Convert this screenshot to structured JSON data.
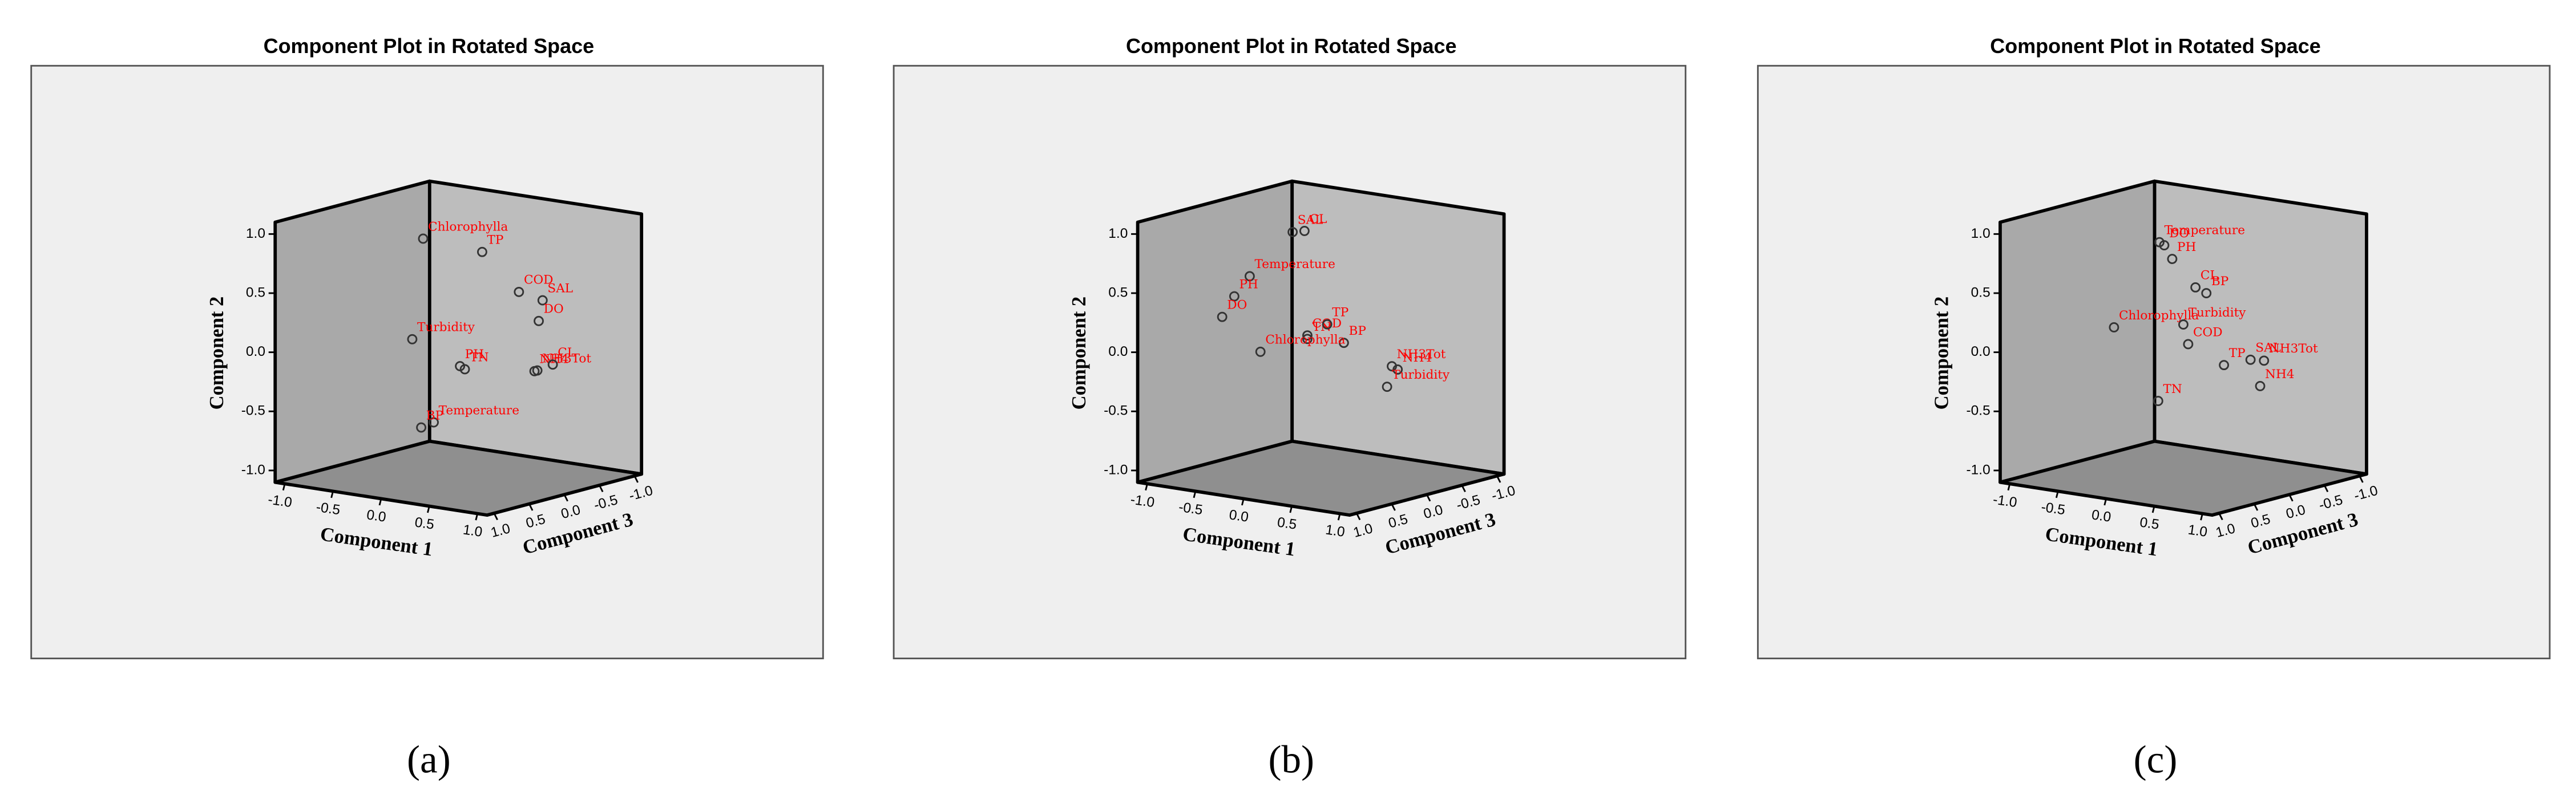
{
  "chart_data": [
    {
      "type": "scatter3d",
      "title": "Component Plot in Rotated Space",
      "caption": "(a)",
      "xlabel": "Component 1",
      "ylabel": "Component 2",
      "zlabel": "Component 3",
      "marker_color": "#333333",
      "label_color": "#ff0000",
      "xlim": [
        -1.1,
        1.1
      ],
      "ylim": [
        -1.1,
        1.1
      ],
      "zlim": [
        -1.1,
        1.1
      ],
      "xticks": [
        {
          "value": -1,
          "label": "-1.0"
        },
        {
          "value": -0.5,
          "label": "-0.5"
        },
        {
          "value": 0,
          "label": "0.0"
        },
        {
          "value": 0.5,
          "label": "0.5"
        },
        {
          "value": 1,
          "label": "1.0"
        }
      ],
      "yticks": [
        {
          "value": -1,
          "label": "-1.0"
        },
        {
          "value": -0.5,
          "label": "-0.5"
        },
        {
          "value": 0,
          "label": "0.0"
        },
        {
          "value": 0.5,
          "label": "0.5"
        },
        {
          "value": 1,
          "label": "1.0"
        }
      ],
      "zticks": [
        {
          "value": -1,
          "label": "-1.0"
        },
        {
          "value": -0.5,
          "label": "-0.5"
        },
        {
          "value": 0,
          "label": "0.0"
        },
        {
          "value": 0.5,
          "label": "0.5"
        },
        {
          "value": 1,
          "label": "1.0"
        }
      ],
      "labels": [
        "Chlorophylla",
        "TP",
        "COD",
        "SAL",
        "DO",
        "Turbidity",
        "PH",
        "TN",
        "NH4",
        "NH3Tot",
        "CL",
        "Temperature",
        "BP"
      ],
      "x": [
        -0.22,
        0.32,
        0.41,
        0.51,
        0.47,
        -0.26,
        -0.42,
        -0.37,
        0.28,
        0.31,
        0.47,
        -0.11,
        -0.24
      ],
      "y": [
        0.93,
        0.87,
        0.48,
        0.39,
        0.21,
        0.09,
        -0.3,
        -0.32,
        -0.27,
        -0.26,
        -0.19,
        -0.61,
        -0.67
      ],
      "z": [
        0.2,
        0.1,
        -0.3,
        -0.5,
        -0.5,
        0.3,
        -0.6,
        -0.6,
        -0.7,
        -0.7,
        -0.7,
        0.2,
        0.2
      ]
    },
    {
      "type": "scatter3d",
      "title": "Component Plot in Rotated Space",
      "caption": "(b)",
      "xlabel": "Component 1",
      "ylabel": "Component 2",
      "zlabel": "Component 3",
      "marker_color": "#333333",
      "label_color": "#ff0000",
      "xlim": [
        -1.1,
        1.1
      ],
      "ylim": [
        -1.1,
        1.1
      ],
      "zlim": [
        -1.1,
        1.1
      ],
      "xticks": [
        {
          "value": -1,
          "label": "-1.0"
        },
        {
          "value": -0.5,
          "label": "-0.5"
        },
        {
          "value": 0,
          "label": "0.0"
        },
        {
          "value": 0.5,
          "label": "0.5"
        },
        {
          "value": 1,
          "label": "1.0"
        }
      ],
      "yticks": [
        {
          "value": -1,
          "label": "-1.0"
        },
        {
          "value": -0.5,
          "label": "-0.5"
        },
        {
          "value": 0,
          "label": "0.0"
        },
        {
          "value": 0.5,
          "label": "0.5"
        },
        {
          "value": 1,
          "label": "1.0"
        }
      ],
      "zticks": [
        {
          "value": -1,
          "label": "-1.0"
        },
        {
          "value": -0.5,
          "label": "-0.5"
        },
        {
          "value": 0,
          "label": "0.0"
        },
        {
          "value": 0.5,
          "label": "0.5"
        },
        {
          "value": 1,
          "label": "1.0"
        }
      ],
      "labels": [
        "CL",
        "SAL",
        "Temperature",
        "PH",
        "DO",
        "COD",
        "TN",
        "TP",
        "BP",
        "Chlorophylla",
        "NH3Tot",
        "NH4",
        "Turbidity"
      ],
      "x": [
        -0.17,
        -0.22,
        -0.52,
        -0.68,
        -0.66,
        -0.14,
        -0.14,
        -0.08,
        0.02,
        -0.19,
        0.3,
        0.36,
        0.25
      ],
      "y": [
        0.97,
        0.97,
        0.59,
        0.4,
        0.26,
        0.09,
        0.06,
        0.16,
        0.0,
        0.04,
        -0.21,
        -0.23,
        -0.39
      ],
      "z": [
        0.0,
        0.1,
        0.3,
        0.3,
        0.5,
        0.0,
        0.0,
        -0.2,
        -0.3,
        0.6,
        -0.6,
        -0.6,
        -0.6
      ]
    },
    {
      "type": "scatter3d",
      "title": "Component Plot in Rotated Space",
      "caption": "(c)",
      "xlabel": "Component 1",
      "ylabel": "Component 2",
      "zlabel": "Component 3",
      "marker_color": "#333333",
      "label_color": "#ff0000",
      "xlim": [
        -1.1,
        1.1
      ],
      "ylim": [
        -1.1,
        1.1
      ],
      "zlim": [
        -1.1,
        1.1
      ],
      "xticks": [
        {
          "value": -1,
          "label": "-1.0"
        },
        {
          "value": -0.5,
          "label": "-0.5"
        },
        {
          "value": 0,
          "label": "0.0"
        },
        {
          "value": 0.5,
          "label": "0.5"
        },
        {
          "value": 1,
          "label": "1.0"
        }
      ],
      "yticks": [
        {
          "value": -1,
          "label": "-1.0"
        },
        {
          "value": -0.5,
          "label": "-0.5"
        },
        {
          "value": 0,
          "label": "0.0"
        },
        {
          "value": 0.5,
          "label": "0.5"
        },
        {
          "value": 1,
          "label": "1.0"
        }
      ],
      "zticks": [
        {
          "value": -1,
          "label": "-1.0"
        },
        {
          "value": -0.5,
          "label": "-0.5"
        },
        {
          "value": 0,
          "label": "0.0"
        },
        {
          "value": 0.5,
          "label": "0.5"
        },
        {
          "value": 1,
          "label": "1.0"
        }
      ],
      "labels": [
        "Temperature",
        "DO",
        "PH",
        "CL",
        "BP",
        "Turbidity",
        "COD",
        "Chlorophylla",
        "SAL",
        "NH3Tot",
        "TP",
        "NH4",
        "TN"
      ],
      "x": [
        -0.03,
        0.02,
        0.03,
        -0.02,
        0.02,
        0.0,
        0.05,
        -0.21,
        0.26,
        0.4,
        0.13,
        0.36,
        0.03
      ],
      "y": [
        0.94,
        0.92,
        0.79,
        0.48,
        0.42,
        0.2,
        0.04,
        0.26,
        -0.16,
        -0.15,
        -0.19,
        -0.37,
        -0.38
      ],
      "z": [
        0.3,
        0.3,
        0.2,
        -0.2,
        -0.3,
        0.0,
        0.0,
        0.7,
        -0.6,
        -0.6,
        -0.4,
        -0.6,
        0.4
      ]
    }
  ]
}
